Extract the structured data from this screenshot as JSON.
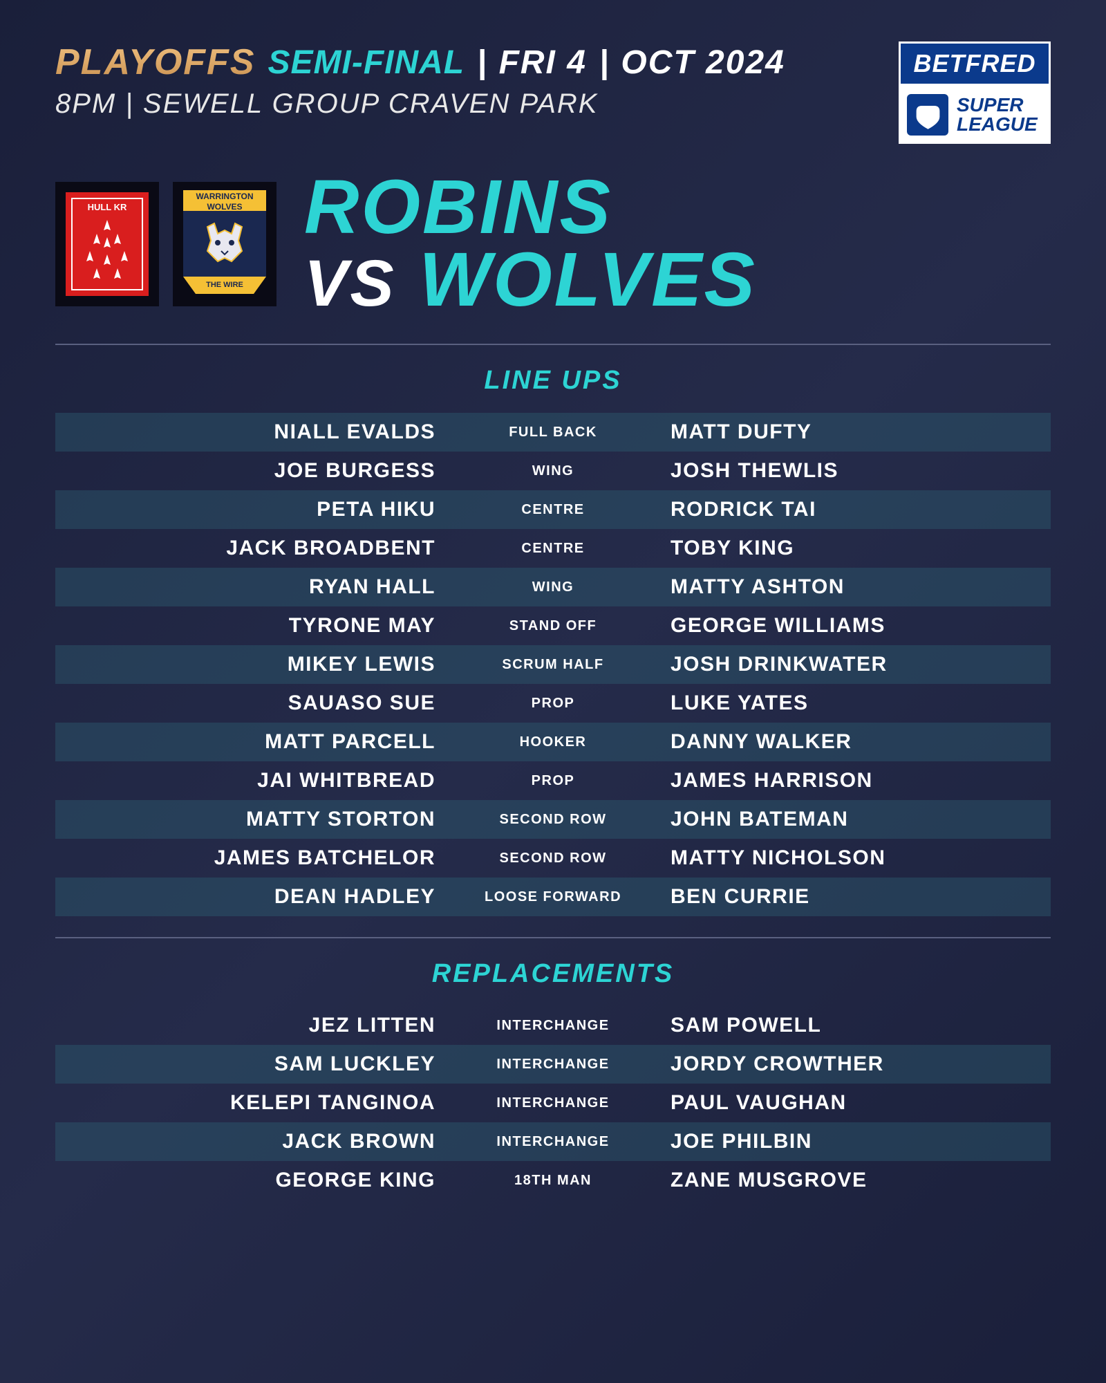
{
  "header": {
    "playoffs": "PLAYOFFS",
    "stage": "SEMI-FINAL",
    "day": "FRI 4",
    "month": "OCT 2024",
    "time": "8PM",
    "venue": "SEWELL GROUP CRAVEN PARK",
    "sponsor_top": "BETFRED",
    "sponsor_bot1": "SUPER",
    "sponsor_bot2": "LEAGUE"
  },
  "badges": {
    "home_name": "HULL KR",
    "away_top": "WARRINGTON WOLVES",
    "away_bot": "THE WIRE"
  },
  "matchup": {
    "home": "ROBINS",
    "vs": "VS",
    "away": "WOLVES"
  },
  "sections": {
    "lineups": "LINE UPS",
    "replacements": "REPLACEMENTS"
  },
  "lineups": [
    {
      "h": "NIALL EVALDS",
      "p": "FULL BACK",
      "a": "MATT DUFTY",
      "stripe": true
    },
    {
      "h": "JOE BURGESS",
      "p": "WING",
      "a": "JOSH THEWLIS",
      "stripe": false
    },
    {
      "h": "PETA HIKU",
      "p": "CENTRE",
      "a": "RODRICK TAI",
      "stripe": true
    },
    {
      "h": "JACK BROADBENT",
      "p": "CENTRE",
      "a": "TOBY KING",
      "stripe": false
    },
    {
      "h": "RYAN HALL",
      "p": "WING",
      "a": "MATTY ASHTON",
      "stripe": true
    },
    {
      "h": "TYRONE MAY",
      "p": "STAND OFF",
      "a": "GEORGE WILLIAMS",
      "stripe": false
    },
    {
      "h": "MIKEY LEWIS",
      "p": "SCRUM HALF",
      "a": "JOSH DRINKWATER",
      "stripe": true
    },
    {
      "h": "SAUASO SUE",
      "p": "PROP",
      "a": "LUKE YATES",
      "stripe": false
    },
    {
      "h": "MATT PARCELL",
      "p": "HOOKER",
      "a": "DANNY WALKER",
      "stripe": true
    },
    {
      "h": "JAI WHITBREAD",
      "p": "PROP",
      "a": "JAMES HARRISON",
      "stripe": false
    },
    {
      "h": "MATTY STORTON",
      "p": "SECOND ROW",
      "a": "JOHN BATEMAN",
      "stripe": true
    },
    {
      "h": "JAMES BATCHELOR",
      "p": "SECOND ROW",
      "a": "MATTY NICHOLSON",
      "stripe": false
    },
    {
      "h": "DEAN HADLEY",
      "p": "LOOSE FORWARD",
      "a": "BEN CURRIE",
      "stripe": true
    }
  ],
  "replacements": [
    {
      "h": "JEZ LITTEN",
      "p": "INTERCHANGE",
      "a": "SAM POWELL",
      "stripe": false
    },
    {
      "h": "SAM LUCKLEY",
      "p": "INTERCHANGE",
      "a": "JORDY CROWTHER",
      "stripe": true
    },
    {
      "h": "KELEPI TANGINOA",
      "p": "INTERCHANGE",
      "a": "PAUL VAUGHAN",
      "stripe": false
    },
    {
      "h": "JACK BROWN",
      "p": "INTERCHANGE",
      "a": "JOE PHILBIN",
      "stripe": true
    },
    {
      "h": "GEORGE KING",
      "p": "18TH MAN",
      "a": "ZANE MUSGROVE",
      "stripe": false
    }
  ],
  "colors": {
    "accent": "#2dd4d4",
    "bg_stripe": "rgba(45,90,110,0.45)",
    "gold_light": "#f0c080",
    "gold_dark": "#c89050",
    "hull_red": "#d91e1e",
    "wolves_blue": "#1a2850",
    "wolves_gold": "#f5c035",
    "betfred_blue": "#0b3a8c"
  },
  "typography": {
    "playoffs_size": 52,
    "stage_size": 48,
    "venue_size": 40,
    "match_title_size": 110,
    "section_title_size": 38,
    "player_size": 30,
    "position_size": 20
  }
}
